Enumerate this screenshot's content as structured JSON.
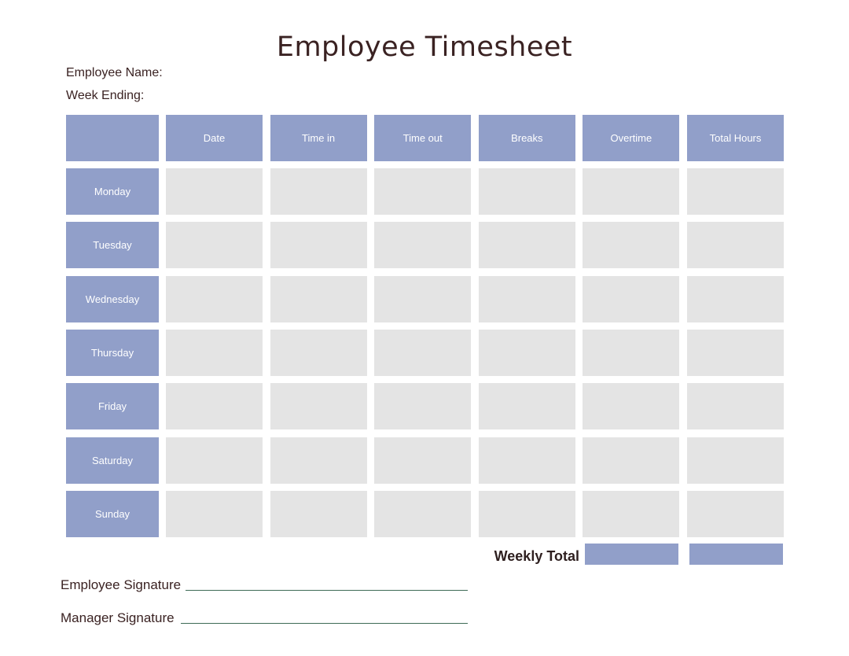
{
  "document": {
    "title": "Employee Timesheet",
    "employee_name_label": "Employee Name:",
    "week_ending_label": "Week Ending:"
  },
  "table": {
    "columns": [
      "Date",
      "Time in",
      "Time out",
      "Breaks",
      "Overtime",
      "Total Hours"
    ],
    "days": [
      "Monday",
      "Tuesday",
      "Wednesday",
      "Thursday",
      "Friday",
      "Saturday",
      "Sunday"
    ]
  },
  "totals": {
    "weekly_total_label": "Weekly Total"
  },
  "signatures": {
    "employee_label": "Employee Signature",
    "manager_label": "Manager Signature"
  },
  "colors": {
    "header_fill": "#919fc9",
    "cell_fill": "#e4e4e4",
    "title_text": "#3a2222",
    "signature_line": "#3d6b56"
  }
}
